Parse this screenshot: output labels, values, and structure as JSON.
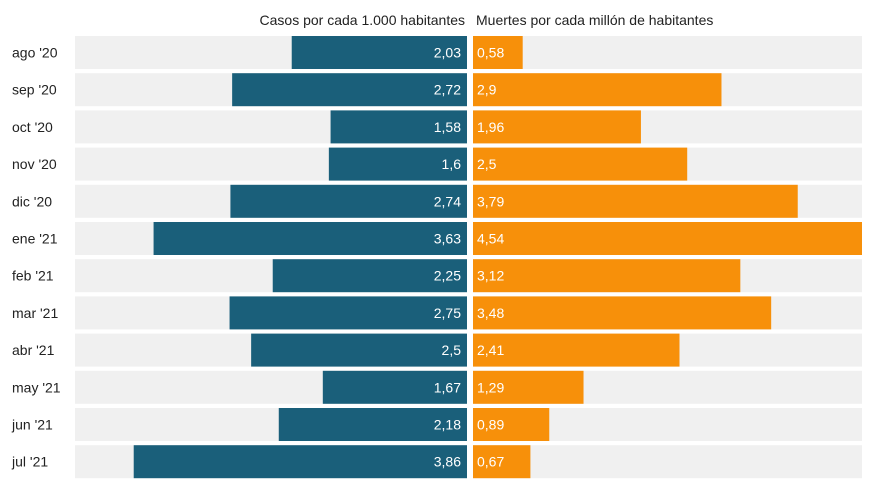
{
  "chart_data": {
    "type": "bar",
    "orientation": "horizontal-diverging",
    "categories": [
      "ago '20",
      "sep '20",
      "oct '20",
      "nov '20",
      "dic '20",
      "ene '21",
      "feb '21",
      "mar '21",
      "abr '21",
      "may '21",
      "jun '21",
      "jul '21"
    ],
    "series": [
      {
        "name": "Casos por cada 1.000 habitantes",
        "color": "#1a5f7a",
        "values": [
          2.03,
          2.72,
          1.58,
          1.6,
          2.74,
          3.63,
          2.25,
          2.75,
          2.5,
          1.67,
          2.18,
          3.86
        ],
        "labels": [
          "2,03",
          "2,72",
          "1,58",
          "1,6",
          "2,74",
          "3,63",
          "2,25",
          "2,75",
          "2,5",
          "1,67",
          "2,18",
          "3,86"
        ]
      },
      {
        "name": "Muertes por cada millón de habitantes",
        "color": "#f7900a",
        "values": [
          0.58,
          2.9,
          1.96,
          2.5,
          3.79,
          4.54,
          3.12,
          3.48,
          2.41,
          1.29,
          0.89,
          0.67
        ],
        "labels": [
          "0,58",
          "2,9",
          "1,96",
          "2,5",
          "3,79",
          "4,54",
          "3,12",
          "3,48",
          "2,41",
          "1,29",
          "0,89",
          "0,67"
        ]
      }
    ],
    "xlim": [
      0,
      4.54
    ],
    "track_color": "#f0f0f0",
    "grid": false
  }
}
